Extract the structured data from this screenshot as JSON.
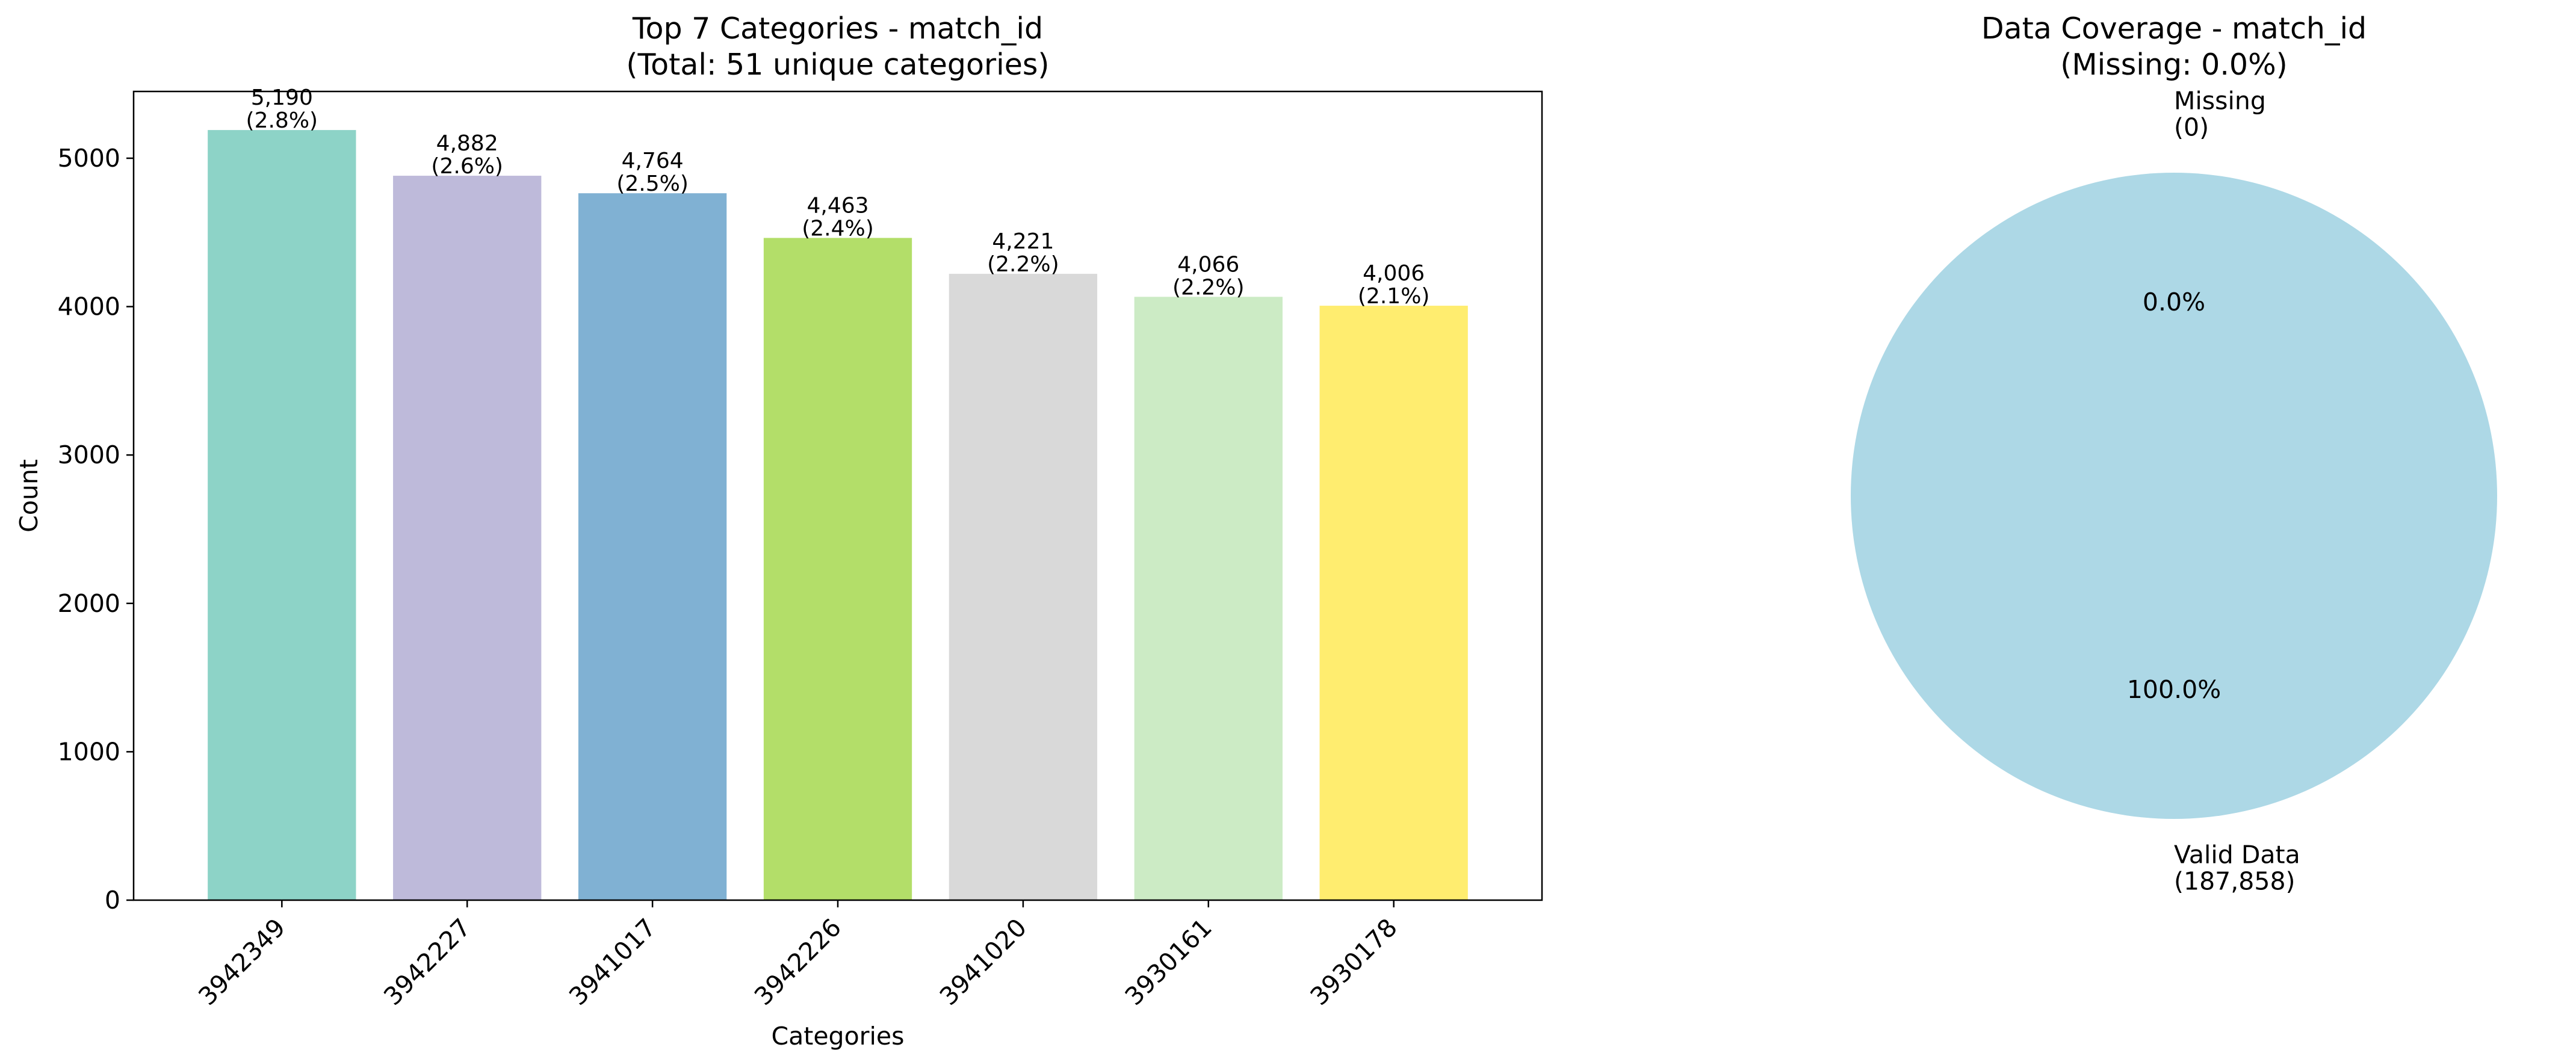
{
  "chart_data": [
    {
      "type": "bar",
      "title_line1": "Top 7 Categories - match_id",
      "title_line2": "(Total: 51 unique categories)",
      "xlabel": "Categories",
      "ylabel": "Count",
      "categories": [
        "3942349",
        "3942227",
        "3941017",
        "3942226",
        "3941020",
        "3930161",
        "3930178"
      ],
      "values": [
        5190,
        4882,
        4764,
        4463,
        4221,
        4066,
        4006
      ],
      "value_labels": [
        "5,190",
        "4,882",
        "4,764",
        "4,463",
        "4,221",
        "4,066",
        "4,006"
      ],
      "percent_labels": [
        "(2.8%)",
        "(2.6%)",
        "(2.5%)",
        "(2.4%)",
        "(2.2%)",
        "(2.2%)",
        "(2.1%)"
      ],
      "colors": [
        "#8dd3c7",
        "#bebada",
        "#80b1d3",
        "#b3de69",
        "#d9d9d9",
        "#ccebc5",
        "#ffed6f"
      ],
      "yticks": [
        0,
        1000,
        2000,
        3000,
        4000,
        5000
      ],
      "ylim": [
        0,
        5450
      ],
      "grid": false
    },
    {
      "type": "pie",
      "title_line1": "Data Coverage - match_id",
      "title_line2": "(Missing: 0.0%)",
      "slices": [
        {
          "label_line1": "Missing",
          "label_line2": "(0)",
          "value": 0,
          "pct_label": "0.0%",
          "color": "#ffb6c1"
        },
        {
          "label_line1": "Valid Data",
          "label_line2": "(187,858)",
          "value": 187858,
          "pct_label": "100.0%",
          "color": "#add8e6"
        }
      ]
    }
  ]
}
